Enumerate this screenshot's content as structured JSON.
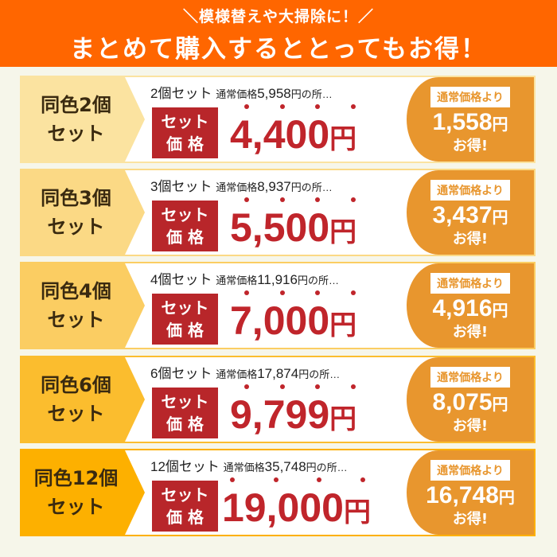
{
  "header": {
    "subtitle": "＼模様替えや大掃除に！／",
    "title": "まとめて購入するととってもお得！"
  },
  "labels": {
    "set_price_line1": "セット",
    "set_price_line2": "価 格",
    "regular_prefix": "通常価格",
    "suffix": "円の所…",
    "save_tag": "通常価格より",
    "yen": "円",
    "otoku": "お得!"
  },
  "colors": {
    "header": "#ff6600",
    "price": "#c0252b",
    "badge": "#b8262a",
    "save_box": "#e8962e"
  },
  "rows": [
    {
      "label1": "同色2個",
      "label2": "セット",
      "count": "2個セット",
      "regular": "5,958",
      "price": "4,400",
      "savings": "1,558",
      "color": "#fbe3a0"
    },
    {
      "label1": "同色3個",
      "label2": "セット",
      "count": "3個セット",
      "regular": "8,937",
      "price": "5,500",
      "savings": "3,437",
      "color": "#fbd985"
    },
    {
      "label1": "同色4個",
      "label2": "セット",
      "count": "4個セット",
      "regular": "11,916",
      "price": "7,000",
      "savings": "4,916",
      "color": "#fbcd62"
    },
    {
      "label1": "同色6個",
      "label2": "セット",
      "count": "6個セット",
      "regular": "17,874",
      "price": "9,799",
      "savings": "8,075",
      "color": "#fbbd2e"
    },
    {
      "label1": "同色12個",
      "label2": "セット",
      "count": "12個セット",
      "regular": "35,748",
      "price": "19,000",
      "savings": "16,748",
      "color": "#fdb000"
    }
  ]
}
